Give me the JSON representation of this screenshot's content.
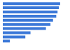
{
  "chart_data": {
    "type": "bar",
    "orientation": "horizontal",
    "categories": [
      null,
      null,
      null,
      null,
      null,
      null,
      null,
      null,
      null,
      null
    ],
    "values": [
      89,
      87,
      85,
      83,
      78,
      74,
      67,
      43,
      35,
      11
    ],
    "color": "#3b78d8",
    "xlim": [
      0,
      100
    ],
    "tick_labels": false,
    "grid": false
  }
}
